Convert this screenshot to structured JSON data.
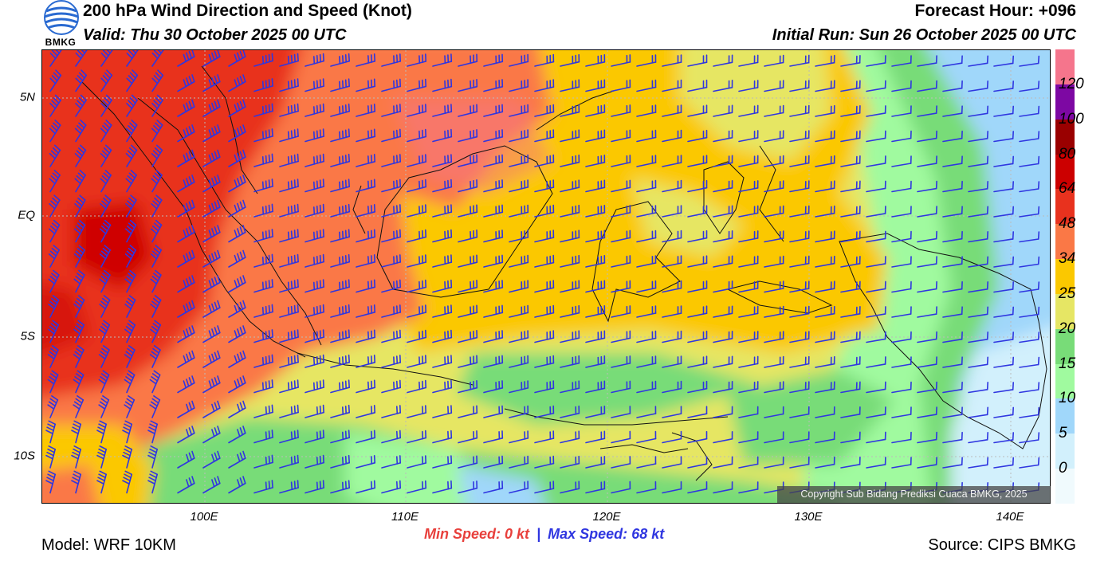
{
  "header": {
    "title": "200 hPa Wind Direction and Speed (Knot)",
    "valid": "Valid: Thu 30 October 2025 00 UTC",
    "forecast_hour": "Forecast Hour: +096",
    "initial_run": "Initial Run: Sun 26 October 2025 00 UTC",
    "logo_text": "BMKG"
  },
  "axes": {
    "lat_labels": [
      "5N",
      "EQ",
      "5S",
      "10S"
    ],
    "lon_labels": [
      "100E",
      "110E",
      "120E",
      "130E",
      "140E"
    ]
  },
  "legend": {
    "labels": [
      "120",
      "100",
      "80",
      "64",
      "48",
      "34",
      "25",
      "20",
      "15",
      "10",
      "5",
      "0"
    ],
    "colors": [
      "#f5758c",
      "#7d08a3",
      "#9a0000",
      "#cc0000",
      "#e8321e",
      "#fa7846",
      "#fbc800",
      "#e6e664",
      "#78dc78",
      "#a0fa9f",
      "#a0d7fa",
      "#d2f0fc",
      "#f0fafd"
    ]
  },
  "colors": {
    "barb": "#2f36e0",
    "coast": "#111111"
  },
  "footer": {
    "model": "Model: WRF 10KM",
    "source": "Source: CIPS BMKG",
    "min_label": "Min Speed:",
    "min_value": "0 kt",
    "separator": "|",
    "max_label": "Max Speed:",
    "max_value": "68 kt",
    "copyright": "Copyright Sub Bidang Prediksi Cuaca BMKG, 2025"
  }
}
